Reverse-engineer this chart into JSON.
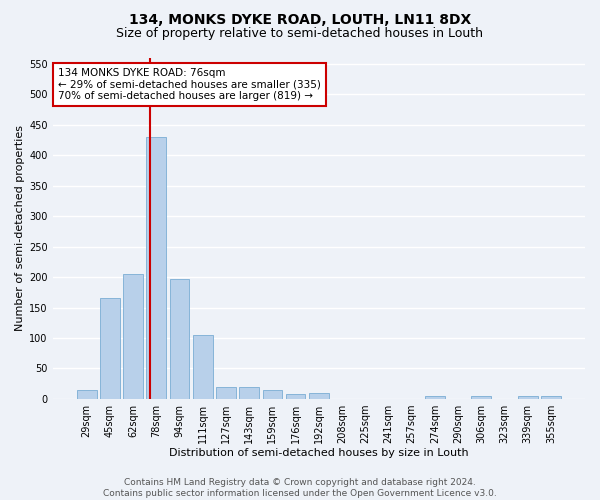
{
  "title1": "134, MONKS DYKE ROAD, LOUTH, LN11 8DX",
  "title2": "Size of property relative to semi-detached houses in Louth",
  "xlabel": "Distribution of semi-detached houses by size in Louth",
  "ylabel": "Number of semi-detached properties",
  "bar_labels": [
    "29sqm",
    "45sqm",
    "62sqm",
    "78sqm",
    "94sqm",
    "111sqm",
    "127sqm",
    "143sqm",
    "159sqm",
    "176sqm",
    "192sqm",
    "208sqm",
    "225sqm",
    "241sqm",
    "257sqm",
    "274sqm",
    "290sqm",
    "306sqm",
    "323sqm",
    "339sqm",
    "355sqm"
  ],
  "bar_values": [
    15,
    165,
    205,
    430,
    197,
    105,
    20,
    20,
    15,
    8,
    10,
    0,
    0,
    0,
    0,
    5,
    0,
    5,
    0,
    5,
    5
  ],
  "bar_color": "#b8d0ea",
  "bar_edge_color": "#7aadd4",
  "vline_color": "#cc0000",
  "annotation_text": "134 MONKS DYKE ROAD: 76sqm\n← 29% of semi-detached houses are smaller (335)\n70% of semi-detached houses are larger (819) →",
  "annotation_box_color": "#ffffff",
  "annotation_box_edge": "#cc0000",
  "ylim": [
    0,
    560
  ],
  "yticks": [
    0,
    50,
    100,
    150,
    200,
    250,
    300,
    350,
    400,
    450,
    500,
    550
  ],
  "footnote": "Contains HM Land Registry data © Crown copyright and database right 2024.\nContains public sector information licensed under the Open Government Licence v3.0.",
  "bg_color": "#eef2f8",
  "grid_color": "#ffffff",
  "title_fontsize": 10,
  "subtitle_fontsize": 9,
  "axis_label_fontsize": 8,
  "tick_fontsize": 7,
  "annotation_fontsize": 7.5,
  "footnote_fontsize": 6.5
}
